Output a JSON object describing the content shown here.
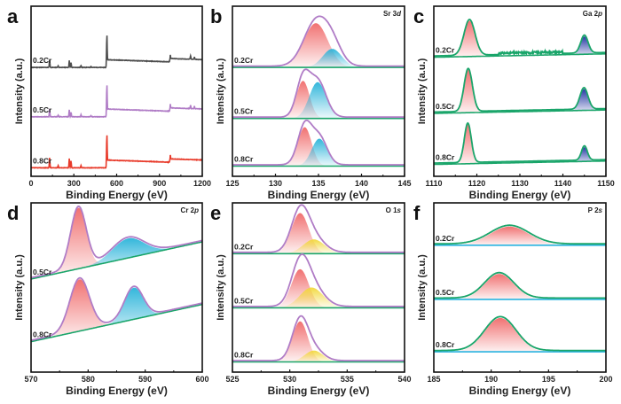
{
  "figure": {
    "description": "XPS spectra of 0.2Cr, 0.5Cr, 0.8Cr samples"
  },
  "chart_data": [
    {
      "id": "a",
      "type": "line",
      "panel_label": "a",
      "element_label": "",
      "xlabel": "Binding Energy (eV)",
      "ylabel": "Intensity (a.u.)",
      "xlim": [
        0,
        1200
      ],
      "xticks": [
        0,
        300,
        600,
        900,
        1200
      ],
      "xtick_labels": [
        "0",
        "300",
        "600",
        "900",
        "1200"
      ],
      "kind": "survey",
      "series": [
        {
          "name": "0.2Cr",
          "color": "#4d4d4d",
          "peaks": [
            [
              130,
              1.0
            ],
            [
              190,
              0.2
            ],
            [
              268,
              0.9
            ],
            [
              280,
              0.6
            ],
            [
              350,
              0.25
            ],
            [
              420,
              0.15
            ],
            [
              531,
              3.5
            ],
            [
              975,
              0.55
            ],
            [
              1118,
              0.45
            ],
            [
              1145,
              0.3
            ]
          ]
        },
        {
          "name": "0.5Cr",
          "color": "#b07cc6",
          "peaks": [
            [
              130,
              1.0
            ],
            [
              190,
              0.2
            ],
            [
              268,
              0.9
            ],
            [
              280,
              0.6
            ],
            [
              350,
              0.25
            ],
            [
              420,
              0.15
            ],
            [
              531,
              3.4
            ],
            [
              975,
              0.55
            ],
            [
              1118,
              0.45
            ],
            [
              1145,
              0.3
            ]
          ]
        },
        {
          "name": "0.8Cr",
          "color": "#e83a2a",
          "peaks": [
            [
              130,
              1.3
            ],
            [
              190,
              0.3
            ],
            [
              268,
              1.2
            ],
            [
              280,
              0.9
            ],
            [
              350,
              0.3
            ],
            [
              531,
              3.6
            ],
            [
              975,
              0.6
            ]
          ]
        }
      ]
    },
    {
      "id": "b",
      "type": "area",
      "panel_label": "b",
      "element_label": "Sr 3d",
      "xlabel": "Binding Energy (eV)",
      "ylabel": "Intensity (a.u.)",
      "xlim": [
        125,
        145
      ],
      "xticks": [
        125,
        130,
        135,
        140,
        145
      ],
      "xtick_labels": [
        "125",
        "130",
        "135",
        "140",
        "145"
      ],
      "envelope_color": "#b07cc6",
      "baseline_color": "#1aa56a",
      "series": [
        {
          "name": "0.2Cr",
          "components": [
            {
              "center": 134.7,
              "fwhm": 3.3,
              "height": 1.0,
              "color": "#f06a6a"
            },
            {
              "center": 136.6,
              "fwhm": 2.6,
              "height": 0.42,
              "color": "#29b3d9"
            }
          ]
        },
        {
          "name": "0.5Cr",
          "components": [
            {
              "center": 133.2,
              "fwhm": 1.8,
              "height": 0.85,
              "color": "#f06a6a"
            },
            {
              "center": 134.9,
              "fwhm": 2.3,
              "height": 0.82,
              "color": "#29b3d9"
            }
          ]
        },
        {
          "name": "0.8Cr",
          "components": [
            {
              "center": 133.4,
              "fwhm": 1.9,
              "height": 0.88,
              "color": "#f06a6a"
            },
            {
              "center": 135.1,
              "fwhm": 2.1,
              "height": 0.62,
              "color": "#29b3d9"
            }
          ]
        }
      ]
    },
    {
      "id": "c",
      "type": "area",
      "panel_label": "c",
      "element_label": "Ga 2p",
      "xlabel": "Binding Energy (eV)",
      "ylabel": "Intensity (a.u.)",
      "xlim": [
        1110,
        1150
      ],
      "xticks": [
        1110,
        1120,
        1130,
        1140,
        1150
      ],
      "xtick_labels": [
        "1110",
        "1120",
        "1130",
        "1140",
        "1150"
      ],
      "envelope_color": "#1aa56a",
      "baseline_color": "#1aa56a",
      "series": [
        {
          "name": "0.2Cr",
          "noise": true,
          "components": [
            {
              "center": 1118.3,
              "fwhm": 3.0,
              "height": 1.0,
              "color": "#f06a6a"
            },
            {
              "center": 1145.0,
              "fwhm": 2.0,
              "height": 0.5,
              "color": "#1c2fa0"
            }
          ]
        },
        {
          "name": "0.5Cr",
          "components": [
            {
              "center": 1118.0,
              "fwhm": 2.3,
              "height": 1.2,
              "color": "#f06a6a"
            },
            {
              "center": 1144.9,
              "fwhm": 2.2,
              "height": 0.6,
              "color": "#1c2fa0"
            }
          ]
        },
        {
          "name": "0.8Cr",
          "components": [
            {
              "center": 1117.9,
              "fwhm": 1.9,
              "height": 1.1,
              "color": "#f06a6a"
            },
            {
              "center": 1145.0,
              "fwhm": 1.6,
              "height": 0.4,
              "color": "#1c2fa0"
            }
          ]
        }
      ]
    },
    {
      "id": "d",
      "type": "area",
      "panel_label": "d",
      "element_label": "Cr 2p",
      "xlabel": "Binding Energy (eV)",
      "ylabel": "Intensity (a.u.)",
      "xlim": [
        570,
        600
      ],
      "xticks": [
        570,
        580,
        590,
        600
      ],
      "xtick_labels": [
        "570",
        "580",
        "590",
        "600"
      ],
      "envelope_color": "#b07cc6",
      "baseline_color": "#1aa56a",
      "series": [
        {
          "name": "0.5Cr",
          "components": [
            {
              "center": 578.3,
              "fwhm": 3.2,
              "height": 1.0,
              "color": "#f06a6a"
            },
            {
              "center": 587.0,
              "fwhm": 6.5,
              "height": 0.32,
              "color": "#29b3d9"
            }
          ]
        },
        {
          "name": "0.8Cr",
          "components": [
            {
              "center": 578.5,
              "fwhm": 4.0,
              "height": 0.85,
              "color": "#f06a6a"
            },
            {
              "center": 588.0,
              "fwhm": 3.8,
              "height": 0.52,
              "color": "#29b3d9"
            }
          ]
        }
      ]
    },
    {
      "id": "e",
      "type": "area",
      "panel_label": "e",
      "element_label": "O 1s",
      "xlabel": "Binding Energy (eV)",
      "ylabel": "Intensity (a.u.)",
      "xlim": [
        525,
        540
      ],
      "xticks": [
        525,
        530,
        535,
        540
      ],
      "xtick_labels": [
        "525",
        "530",
        "535",
        "540"
      ],
      "envelope_color": "#b07cc6",
      "baseline_color": "#1aa56a",
      "series": [
        {
          "name": "0.2Cr",
          "components": [
            {
              "center": 530.9,
              "fwhm": 1.8,
              "height": 1.0,
              "color": "#f06a6a"
            },
            {
              "center": 532.1,
              "fwhm": 2.2,
              "height": 0.35,
              "color": "#f2d83a"
            }
          ]
        },
        {
          "name": "0.5Cr",
          "components": [
            {
              "center": 530.9,
              "fwhm": 1.8,
              "height": 0.95,
              "color": "#f06a6a"
            },
            {
              "center": 531.9,
              "fwhm": 2.4,
              "height": 0.5,
              "color": "#f2d83a"
            }
          ]
        },
        {
          "name": "0.8Cr",
          "components": [
            {
              "center": 530.9,
              "fwhm": 1.6,
              "height": 1.0,
              "color": "#f06a6a"
            },
            {
              "center": 532.1,
              "fwhm": 1.9,
              "height": 0.28,
              "color": "#f2d83a"
            }
          ]
        }
      ]
    },
    {
      "id": "f",
      "type": "area",
      "panel_label": "f",
      "element_label": "P 2s",
      "xlabel": "Binding Energy (eV)",
      "ylabel": "Intensity (a.u.)",
      "xlim": [
        185,
        200
      ],
      "xticks": [
        185,
        190,
        195,
        200
      ],
      "xtick_labels": [
        "185",
        "190",
        "195",
        "200"
      ],
      "envelope_color": "#1aa56a",
      "baseline_color": "#29b3e0",
      "series": [
        {
          "name": "0.2Cr",
          "components": [
            {
              "center": 191.6,
              "fwhm": 4.0,
              "height": 0.55,
              "color": "#f06a6a"
            }
          ]
        },
        {
          "name": "0.5Cr",
          "components": [
            {
              "center": 190.7,
              "fwhm": 3.0,
              "height": 0.75,
              "color": "#f06a6a"
            }
          ]
        },
        {
          "name": "0.8Cr",
          "components": [
            {
              "center": 190.8,
              "fwhm": 3.2,
              "height": 1.0,
              "color": "#f06a6a"
            }
          ]
        }
      ]
    }
  ]
}
